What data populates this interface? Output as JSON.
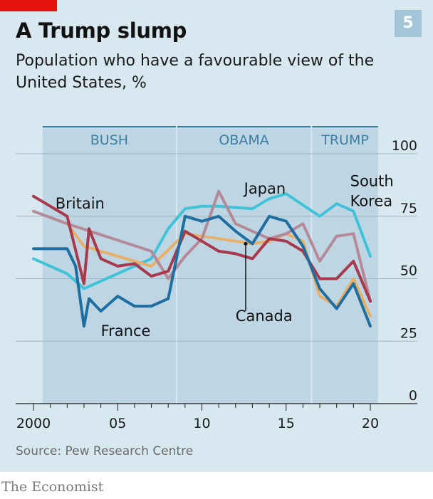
{
  "title": "A Trump slump",
  "subtitle": "Population who have a favourable view of the United States, %",
  "badge": "5",
  "source": "Source: Pew Research Centre",
  "publisher": "The Economist",
  "chart_data": {
    "type": "line",
    "title": "A Trump slump",
    "subtitle": "Population who have a favourable view of the United States, %",
    "xlim": [
      1999.5,
      2021
    ],
    "ylim": [
      0,
      100
    ],
    "yticks": [
      0,
      25,
      50,
      75,
      100
    ],
    "xticks": [
      2000,
      2005,
      2010,
      2015,
      2020
    ],
    "xtick_labels": [
      "2000",
      "05",
      "10",
      "15",
      "20"
    ],
    "grid": "horizontal",
    "eras": [
      {
        "label": "BUSH",
        "start": 2000.5,
        "end": 2008.5
      },
      {
        "label": "OBAMA",
        "start": 2008.5,
        "end": 2016.5
      },
      {
        "label": "TRUMP",
        "start": 2016.5,
        "end": 2020.5
      }
    ],
    "series": [
      {
        "name": "South Korea",
        "color": "#40c3d8",
        "x": [
          2000,
          2002,
          2003,
          2007,
          2008,
          2009,
          2010,
          2011,
          2013,
          2014,
          2015,
          2017,
          2018,
          2019,
          2020
        ],
        "y": [
          58,
          52,
          46,
          58,
          70,
          78,
          79,
          79,
          78,
          82,
          84,
          75,
          80,
          77,
          59
        ]
      },
      {
        "name": "Canada",
        "color": "#e6b06a",
        "x": [
          2002,
          2003,
          2005,
          2007,
          2009,
          2011,
          2012,
          2013,
          2014,
          2015,
          2016,
          2017,
          2018,
          2019,
          2020
        ],
        "y": [
          72,
          63,
          59,
          55,
          68,
          66,
          65,
          64,
          65,
          68,
          65,
          43,
          39,
          50,
          35
        ]
      },
      {
        "name": "Japan",
        "color": "#b58a98",
        "x": [
          2000,
          2002,
          2007,
          2008,
          2009,
          2010,
          2011,
          2012,
          2013,
          2014,
          2015,
          2016,
          2017,
          2018,
          2019,
          2020
        ],
        "y": [
          77,
          72,
          61,
          50,
          59,
          66,
          85,
          72,
          69,
          66,
          68,
          72,
          57,
          67,
          68,
          41
        ]
      },
      {
        "name": "Britain",
        "color": "#a8394d",
        "x": [
          2000,
          2002,
          2003,
          2003.3,
          2004,
          2005,
          2006,
          2007,
          2008,
          2009,
          2010,
          2011,
          2012,
          2013,
          2014,
          2015,
          2016,
          2017,
          2018,
          2019,
          2020
        ],
        "y": [
          83,
          75,
          48,
          70,
          58,
          55,
          56,
          51,
          53,
          69,
          65,
          61,
          60,
          58,
          66,
          65,
          61,
          50,
          50,
          57,
          41
        ]
      },
      {
        "name": "France",
        "color": "#1e6fa0",
        "x": [
          2000,
          2002,
          2002.5,
          2003,
          2003.3,
          2004,
          2005,
          2006,
          2007,
          2008,
          2009,
          2010,
          2011,
          2012,
          2013,
          2014,
          2015,
          2016,
          2017,
          2018,
          2019,
          2020
        ],
        "y": [
          62,
          62,
          55,
          31,
          42,
          37,
          43,
          39,
          39,
          42,
          75,
          73,
          75,
          69,
          64,
          75,
          73,
          63,
          46,
          38,
          48,
          31
        ]
      }
    ],
    "labels": [
      {
        "text": "Britain",
        "x": 2001.3,
        "y": 78
      },
      {
        "text": "Japan",
        "x": 2012.5,
        "y": 84
      },
      {
        "text": "South",
        "x": 2018.8,
        "y": 87
      },
      {
        "text": "Korea",
        "x": 2018.8,
        "y": 79
      },
      {
        "text": "Canada",
        "x": 2012,
        "y": 33
      },
      {
        "text": "France",
        "x": 2004,
        "y": 27
      }
    ]
  }
}
